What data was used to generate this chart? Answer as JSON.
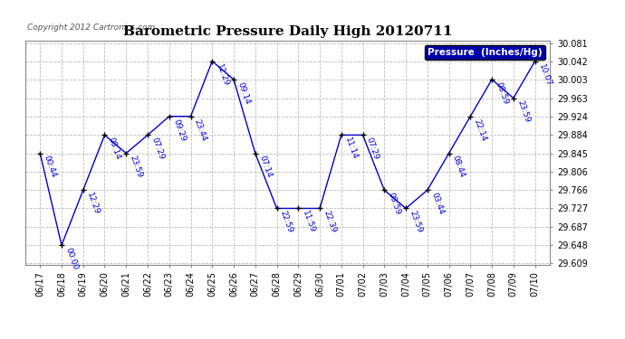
{
  "title": "Barometric Pressure Daily High 20120711",
  "copyright": "Copyright 2012 Cartronics.com",
  "legend_label": "Pressure  (Inches/Hg)",
  "background_color": "#ffffff",
  "plot_bg_color": "#ffffff",
  "line_color": "#0000cc",
  "marker_color": "#000000",
  "text_color": "#0000cc",
  "ylim_min": 29.609,
  "ylim_max": 30.081,
  "yticks": [
    29.609,
    29.648,
    29.687,
    29.727,
    29.766,
    29.806,
    29.845,
    29.884,
    29.924,
    29.963,
    30.003,
    30.042,
    30.081
  ],
  "data": [
    {
      "date": "06/17",
      "time": "00:44",
      "value": 29.845
    },
    {
      "date": "06/18",
      "time": "00:00",
      "value": 29.648
    },
    {
      "date": "06/19",
      "time": "12:29",
      "value": 29.766
    },
    {
      "date": "06/20",
      "time": "08:14",
      "value": 29.884
    },
    {
      "date": "06/21",
      "time": "23:59",
      "value": 29.845
    },
    {
      "date": "06/22",
      "time": "07:29",
      "value": 29.884
    },
    {
      "date": "06/23",
      "time": "09:29",
      "value": 29.924
    },
    {
      "date": "06/24",
      "time": "23:44",
      "value": 29.924
    },
    {
      "date": "06/25",
      "time": "12:29",
      "value": 30.042
    },
    {
      "date": "06/26",
      "time": "09:14",
      "value": 30.003
    },
    {
      "date": "06/27",
      "time": "07:14",
      "value": 29.845
    },
    {
      "date": "06/28",
      "time": "22:59",
      "value": 29.727
    },
    {
      "date": "06/29",
      "time": "11:59",
      "value": 29.727
    },
    {
      "date": "06/30",
      "time": "22:39",
      "value": 29.727
    },
    {
      "date": "07/01",
      "time": "11:14",
      "value": 29.884
    },
    {
      "date": "07/02",
      "time": "07:29",
      "value": 29.884
    },
    {
      "date": "07/03",
      "time": "08:59",
      "value": 29.766
    },
    {
      "date": "07/04",
      "time": "23:59",
      "value": 29.727
    },
    {
      "date": "07/05",
      "time": "03:44",
      "value": 29.766
    },
    {
      "date": "07/06",
      "time": "08:44",
      "value": 29.845
    },
    {
      "date": "07/07",
      "time": "22:14",
      "value": 29.924
    },
    {
      "date": "07/08",
      "time": "08:59",
      "value": 30.003
    },
    {
      "date": "07/09",
      "time": "23:59",
      "value": 29.963
    },
    {
      "date": "07/10",
      "time": "10:07",
      "value": 30.042
    }
  ],
  "grid_color": "#bbbbbb",
  "grid_style": "--",
  "title_fontsize": 11,
  "tick_fontsize": 7,
  "annot_fontsize": 6.5,
  "copyright_fontsize": 6.5,
  "legend_fontsize": 7.5
}
